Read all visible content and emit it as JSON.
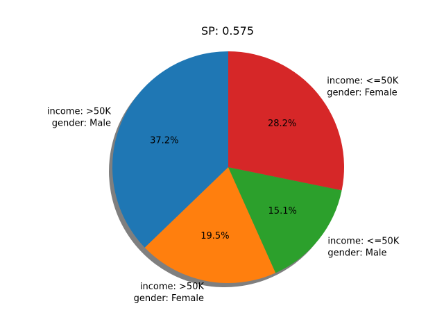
{
  "chart_data": {
    "type": "pie",
    "title": "SP: 0.575",
    "shadow": true,
    "start_angle_deg": 90,
    "direction": "counterclockwise",
    "slices": [
      {
        "label_lines": [
          "income: >50K",
          "gender: Male"
        ],
        "value": 37.2,
        "pct_label": "37.2%",
        "color": "#1f77b4",
        "label_anchor": "end"
      },
      {
        "label_lines": [
          "income: >50K",
          "gender: Female"
        ],
        "value": 19.5,
        "pct_label": "19.5%",
        "color": "#ff7f0e",
        "label_anchor": "end"
      },
      {
        "label_lines": [
          "income: <=50K",
          "gender: Male"
        ],
        "value": 15.1,
        "pct_label": "15.1%",
        "color": "#2ca02c",
        "label_anchor": "start"
      },
      {
        "label_lines": [
          "income: <=50K",
          "gender: Female"
        ],
        "value": 28.2,
        "pct_label": "28.2%",
        "color": "#d62728",
        "label_anchor": "start"
      }
    ]
  }
}
